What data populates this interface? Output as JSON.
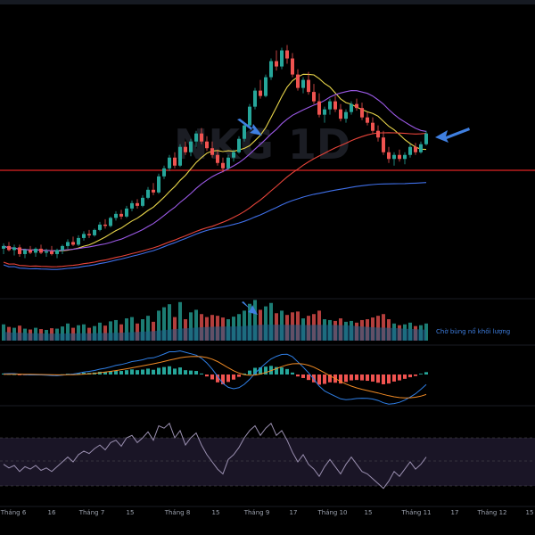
{
  "chart_data": {
    "type": "candlestick",
    "watermark": "NKG 1D",
    "annotation_text": "Chờ bùng nổ khối lượng",
    "x_tick_labels": [
      "Tháng 6",
      "16",
      "Tháng 7",
      "15",
      "Tháng 8",
      "15",
      "Tháng 9",
      "17",
      "Tháng 10",
      "15",
      "Tháng 11",
      "17",
      "Tháng 12",
      "15"
    ],
    "colors": {
      "background": "#000000",
      "up": "#26a69a",
      "down": "#ef5350",
      "ma_yellow": "#e8d54a",
      "ma_purple": "#9b59e6",
      "ma_red": "#e8443a",
      "ma_blue": "#3f6fe8",
      "support_line": "#e02424",
      "volume_ma": "#1f5f8b",
      "arrow": "#3f7fe0",
      "macd_line": "#2f7fe6",
      "signal_line": "#f08a24",
      "rsi_line": "#9a8fb0",
      "rsi_band": "#1a1526"
    },
    "candles": [
      [
        15.6,
        16.0,
        15.2,
        15.8
      ],
      [
        15.8,
        16.1,
        15.4,
        15.5
      ],
      [
        15.5,
        15.9,
        15.1,
        15.7
      ],
      [
        15.7,
        15.9,
        15.0,
        15.2
      ],
      [
        15.2,
        15.6,
        14.9,
        15.5
      ],
      [
        15.5,
        15.8,
        15.2,
        15.3
      ],
      [
        15.3,
        15.7,
        15.0,
        15.6
      ],
      [
        15.6,
        15.9,
        15.2,
        15.3
      ],
      [
        15.3,
        15.6,
        15.0,
        15.4
      ],
      [
        15.4,
        15.8,
        15.1,
        15.2
      ],
      [
        15.2,
        15.6,
        14.9,
        15.5
      ],
      [
        15.5,
        15.9,
        15.2,
        15.8
      ],
      [
        15.8,
        16.3,
        15.6,
        16.1
      ],
      [
        16.1,
        16.5,
        15.8,
        15.9
      ],
      [
        15.9,
        16.6,
        15.8,
        16.4
      ],
      [
        16.4,
        16.9,
        16.2,
        16.7
      ],
      [
        16.7,
        17.0,
        16.4,
        16.6
      ],
      [
        16.6,
        17.1,
        16.5,
        17.0
      ],
      [
        17.0,
        17.6,
        16.9,
        17.4
      ],
      [
        17.4,
        17.8,
        17.1,
        17.3
      ],
      [
        17.3,
        18.0,
        17.2,
        17.9
      ],
      [
        17.9,
        18.4,
        17.7,
        18.2
      ],
      [
        18.2,
        18.5,
        17.8,
        18.0
      ],
      [
        18.0,
        18.8,
        17.9,
        18.6
      ],
      [
        18.6,
        19.2,
        18.4,
        19.0
      ],
      [
        19.0,
        19.3,
        18.6,
        18.8
      ],
      [
        18.8,
        19.6,
        18.7,
        19.4
      ],
      [
        19.4,
        20.2,
        19.3,
        20.0
      ],
      [
        20.0,
        20.5,
        19.6,
        19.8
      ],
      [
        19.8,
        21.2,
        19.7,
        21.0
      ],
      [
        21.0,
        21.8,
        20.8,
        21.6
      ],
      [
        21.6,
        22.6,
        21.4,
        22.4
      ],
      [
        22.4,
        22.8,
        21.6,
        21.8
      ],
      [
        21.8,
        23.4,
        21.7,
        23.2
      ],
      [
        23.2,
        23.6,
        22.6,
        22.8
      ],
      [
        22.8,
        23.8,
        22.5,
        23.6
      ],
      [
        23.6,
        24.4,
        23.2,
        24.2
      ],
      [
        24.2,
        24.6,
        23.4,
        23.6
      ],
      [
        23.6,
        24.0,
        22.9,
        23.1
      ],
      [
        23.1,
        23.6,
        22.4,
        22.6
      ],
      [
        22.6,
        23.0,
        21.8,
        22.0
      ],
      [
        22.0,
        22.4,
        21.3,
        21.6
      ],
      [
        21.6,
        22.6,
        21.5,
        22.4
      ],
      [
        22.4,
        23.0,
        22.1,
        22.8
      ],
      [
        22.8,
        24.0,
        22.7,
        23.8
      ],
      [
        23.8,
        25.0,
        23.6,
        24.8
      ],
      [
        24.8,
        26.4,
        24.6,
        26.2
      ],
      [
        26.2,
        27.6,
        26.0,
        27.4
      ],
      [
        27.4,
        28.2,
        26.8,
        27.0
      ],
      [
        27.0,
        28.6,
        26.9,
        28.4
      ],
      [
        28.4,
        29.8,
        28.2,
        29.6
      ],
      [
        29.6,
        30.4,
        28.9,
        29.2
      ],
      [
        29.2,
        30.6,
        29.0,
        30.4
      ],
      [
        30.4,
        30.8,
        29.4,
        29.8
      ],
      [
        29.8,
        30.2,
        28.4,
        28.6
      ],
      [
        28.6,
        29.0,
        27.4,
        27.6
      ],
      [
        27.6,
        28.4,
        27.2,
        28.2
      ],
      [
        28.2,
        28.8,
        27.1,
        27.3
      ],
      [
        27.3,
        27.9,
        26.4,
        26.6
      ],
      [
        26.6,
        27.2,
        25.4,
        25.6
      ],
      [
        25.6,
        26.2,
        25.0,
        26.0
      ],
      [
        26.0,
        26.8,
        25.6,
        26.6
      ],
      [
        26.6,
        27.0,
        25.8,
        26.0
      ],
      [
        26.0,
        26.4,
        25.1,
        25.3
      ],
      [
        25.3,
        26.0,
        25.0,
        25.8
      ],
      [
        25.8,
        26.6,
        25.6,
        26.4
      ],
      [
        26.4,
        26.8,
        25.9,
        26.1
      ],
      [
        26.1,
        26.5,
        25.2,
        25.4
      ],
      [
        25.4,
        25.8,
        24.8,
        25.0
      ],
      [
        25.0,
        25.4,
        24.2,
        24.4
      ],
      [
        24.4,
        24.8,
        23.6,
        23.9
      ],
      [
        23.9,
        24.4,
        22.6,
        22.8
      ],
      [
        22.8,
        23.2,
        22.0,
        22.3
      ],
      [
        22.3,
        22.8,
        21.8,
        22.6
      ],
      [
        22.6,
        23.0,
        22.1,
        22.3
      ],
      [
        22.3,
        22.8,
        21.9,
        22.6
      ],
      [
        22.6,
        23.4,
        22.4,
        23.2
      ],
      [
        23.2,
        23.5,
        22.6,
        22.8
      ],
      [
        22.8,
        23.6,
        22.7,
        23.4
      ],
      [
        23.4,
        24.4,
        23.3,
        24.2
      ]
    ],
    "volumes": [
      [
        0.38,
        1
      ],
      [
        0.32,
        0
      ],
      [
        0.3,
        1
      ],
      [
        0.35,
        0
      ],
      [
        0.28,
        1
      ],
      [
        0.26,
        0
      ],
      [
        0.3,
        1
      ],
      [
        0.27,
        0
      ],
      [
        0.25,
        1
      ],
      [
        0.29,
        0
      ],
      [
        0.28,
        1
      ],
      [
        0.33,
        1
      ],
      [
        0.4,
        1
      ],
      [
        0.3,
        0
      ],
      [
        0.36,
        1
      ],
      [
        0.38,
        1
      ],
      [
        0.3,
        0
      ],
      [
        0.34,
        1
      ],
      [
        0.42,
        1
      ],
      [
        0.35,
        0
      ],
      [
        0.45,
        1
      ],
      [
        0.48,
        1
      ],
      [
        0.38,
        0
      ],
      [
        0.52,
        1
      ],
      [
        0.55,
        1
      ],
      [
        0.4,
        0
      ],
      [
        0.5,
        1
      ],
      [
        0.58,
        1
      ],
      [
        0.44,
        0
      ],
      [
        0.7,
        1
      ],
      [
        0.78,
        1
      ],
      [
        0.85,
        1
      ],
      [
        0.55,
        0
      ],
      [
        0.9,
        1
      ],
      [
        0.5,
        0
      ],
      [
        0.66,
        1
      ],
      [
        0.72,
        1
      ],
      [
        0.62,
        0
      ],
      [
        0.55,
        0
      ],
      [
        0.6,
        0
      ],
      [
        0.58,
        0
      ],
      [
        0.54,
        0
      ],
      [
        0.5,
        1
      ],
      [
        0.56,
        1
      ],
      [
        0.62,
        1
      ],
      [
        0.7,
        1
      ],
      [
        0.86,
        1
      ],
      [
        0.95,
        1
      ],
      [
        0.72,
        0
      ],
      [
        0.8,
        1
      ],
      [
        0.88,
        1
      ],
      [
        0.64,
        0
      ],
      [
        0.7,
        1
      ],
      [
        0.6,
        0
      ],
      [
        0.66,
        0
      ],
      [
        0.68,
        0
      ],
      [
        0.52,
        1
      ],
      [
        0.58,
        0
      ],
      [
        0.62,
        0
      ],
      [
        0.7,
        0
      ],
      [
        0.5,
        1
      ],
      [
        0.48,
        1
      ],
      [
        0.46,
        0
      ],
      [
        0.52,
        0
      ],
      [
        0.44,
        1
      ],
      [
        0.46,
        1
      ],
      [
        0.42,
        0
      ],
      [
        0.48,
        0
      ],
      [
        0.5,
        0
      ],
      [
        0.54,
        0
      ],
      [
        0.58,
        0
      ],
      [
        0.62,
        0
      ],
      [
        0.5,
        0
      ],
      [
        0.4,
        1
      ],
      [
        0.36,
        0
      ],
      [
        0.38,
        1
      ],
      [
        0.42,
        1
      ],
      [
        0.34,
        0
      ],
      [
        0.36,
        1
      ],
      [
        0.4,
        1
      ]
    ],
    "macd_hist": [
      0.05,
      0.02,
      0.01,
      -0.02,
      -0.03,
      -0.02,
      0.0,
      -0.01,
      -0.02,
      -0.03,
      -0.02,
      0.01,
      0.04,
      0.03,
      0.06,
      0.09,
      0.08,
      0.1,
      0.14,
      0.13,
      0.17,
      0.2,
      0.18,
      0.22,
      0.26,
      0.22,
      0.25,
      0.3,
      0.24,
      0.34,
      0.38,
      0.42,
      0.3,
      0.36,
      0.22,
      0.2,
      0.18,
      0.05,
      -0.1,
      -0.25,
      -0.4,
      -0.5,
      -0.38,
      -0.26,
      -0.12,
      0.05,
      0.2,
      0.34,
      0.36,
      0.4,
      0.44,
      0.38,
      0.36,
      0.28,
      0.1,
      -0.1,
      -0.18,
      -0.28,
      -0.4,
      -0.52,
      -0.48,
      -0.4,
      -0.42,
      -0.46,
      -0.38,
      -0.3,
      -0.28,
      -0.3,
      -0.32,
      -0.36,
      -0.42,
      -0.5,
      -0.46,
      -0.36,
      -0.3,
      -0.22,
      -0.14,
      -0.08,
      0.04,
      0.12
    ],
    "rsi": [
      48,
      45,
      47,
      42,
      46,
      44,
      47,
      43,
      45,
      42,
      46,
      50,
      54,
      50,
      56,
      59,
      57,
      61,
      64,
      60,
      66,
      68,
      63,
      70,
      72,
      66,
      70,
      75,
      68,
      80,
      78,
      82,
      70,
      76,
      64,
      70,
      74,
      64,
      56,
      50,
      44,
      40,
      52,
      56,
      62,
      70,
      76,
      80,
      72,
      78,
      82,
      72,
      76,
      68,
      58,
      50,
      56,
      48,
      44,
      38,
      46,
      52,
      46,
      40,
      48,
      54,
      48,
      42,
      40,
      36,
      32,
      28,
      34,
      42,
      38,
      44,
      50,
      44,
      48,
      54
    ]
  }
}
